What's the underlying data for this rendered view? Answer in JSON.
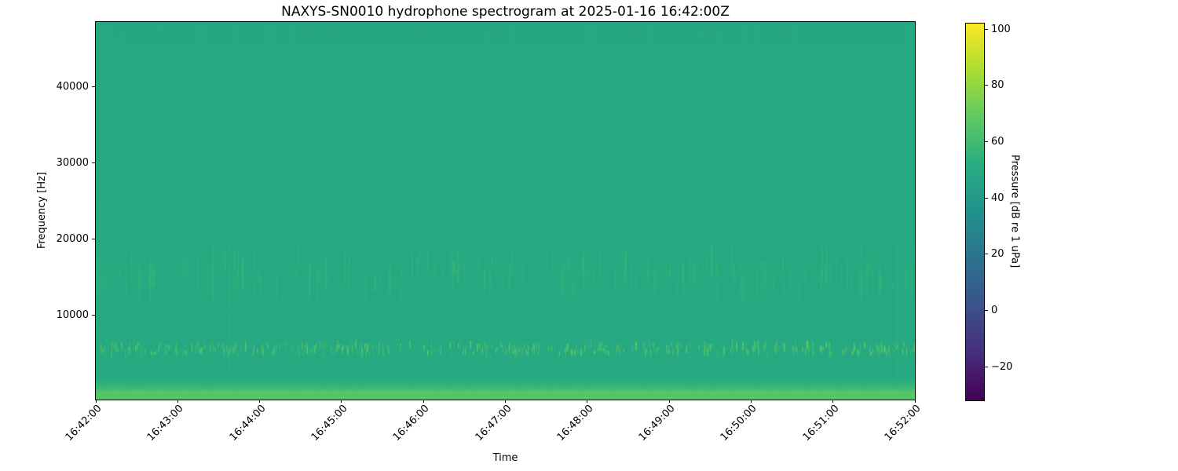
{
  "chart_data": {
    "type": "heatmap",
    "subtype": "spectrogram",
    "title": "NAXYS-SN0010 hydrophone spectrogram at 2025-01-16 16:42:00Z",
    "xlabel": "Time",
    "ylabel": "Frequency [Hz]",
    "x_tick_labels": [
      "16:42:00",
      "16:43:00",
      "16:44:00",
      "16:45:00",
      "16:46:00",
      "16:47:00",
      "16:48:00",
      "16:49:00",
      "16:50:00",
      "16:51:00",
      "16:52:00"
    ],
    "y_ticks": [
      {
        "value": 10000,
        "label": "10000"
      },
      {
        "value": 20000,
        "label": "20000"
      },
      {
        "value": 30000,
        "label": "30000"
      },
      {
        "value": 40000,
        "label": "40000"
      }
    ],
    "ylim_hz": [
      0,
      48000
    ],
    "xlim_time": [
      "16:42:00",
      "16:52:00"
    ],
    "grid": false,
    "colormap": "viridis",
    "colorbar": {
      "label": "Pressure [dB re 1 uPa]",
      "ticks": [
        {
          "value": 100,
          "label": "100"
        },
        {
          "value": 80,
          "label": "80"
        },
        {
          "value": 60,
          "label": "60"
        },
        {
          "value": 40,
          "label": "40"
        },
        {
          "value": 20,
          "label": "20"
        },
        {
          "value": 0,
          "label": "0"
        },
        {
          "value": -20,
          "label": "−20"
        }
      ],
      "vmin": -32,
      "vmax": 102,
      "stops": [
        "#440154",
        "#472d7b",
        "#3b528b",
        "#2c728e",
        "#21918c",
        "#27ad81",
        "#5ec962",
        "#aadc32",
        "#fde725"
      ]
    },
    "background_level_db": 49,
    "features": [
      {
        "name": "low-frequency broadband band",
        "freq_hz": [
          0,
          2600
        ],
        "peak_level_db": 67,
        "pattern": "continuous bright band along the bottom, brightest below 500 Hz"
      },
      {
        "name": "click train",
        "freq_hz": [
          5000,
          6200
        ],
        "level_db": 64,
        "pattern": "intermittent short bright blips across the whole record"
      },
      {
        "name": "mid-frequency streaks",
        "freq_hz": [
          13500,
          17500
        ],
        "level_db": 57,
        "pattern": "dense faint vertical streaks"
      },
      {
        "name": "broadband transients",
        "freq_hz": [
          0,
          48000
        ],
        "level_db": 53,
        "pattern": "faint full-height vertical striations"
      }
    ],
    "colors": {
      "figure_background": "#ffffff",
      "spine": "#000000",
      "text": "#000000",
      "base_teal": "#24a285"
    }
  }
}
